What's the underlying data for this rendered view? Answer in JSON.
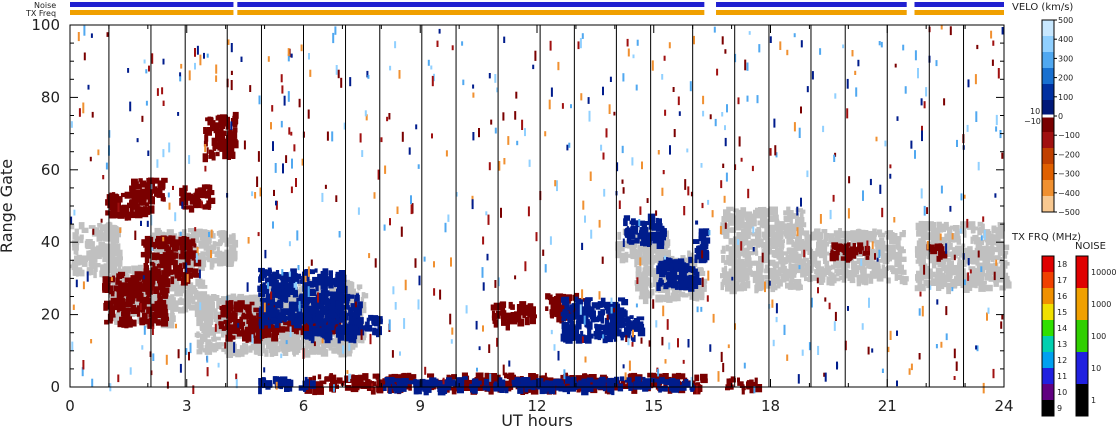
{
  "chart_data": {
    "type": "heatmap",
    "xlabel": "UT hours",
    "ylabel": "Range Gate",
    "xlim": [
      0,
      24
    ],
    "ylim": [
      0,
      100
    ],
    "x_ticks": [
      "0",
      "3",
      "6",
      "9",
      "12",
      "15",
      "18",
      "21",
      "24"
    ],
    "y_ticks": [
      "0",
      "20",
      "40",
      "60",
      "80",
      "100"
    ],
    "status_bars": {
      "noise_label": "Noise",
      "txfreq_label": "TX Freq",
      "noise_color": "#2020d0",
      "txfreq_color": "#f0a000",
      "segments": [
        [
          0,
          4.2
        ],
        [
          4.3,
          16.3
        ],
        [
          16.6,
          21.5
        ],
        [
          21.7,
          24
        ]
      ]
    },
    "scan_boundaries_hours": [
      1,
      2,
      3,
      4,
      5,
      6,
      7,
      8,
      9,
      10,
      11,
      12,
      13,
      14,
      15,
      16,
      17,
      18,
      19,
      20,
      21,
      22,
      23
    ],
    "velocity_colorbar": {
      "title": "VELO (km/s)",
      "ticks_positive": [
        "500",
        "400",
        "300",
        "200",
        "100",
        "0"
      ],
      "ticks_negative": [
        "−100",
        "−200",
        "−300",
        "−400",
        "−500"
      ],
      "side_labels": [
        "10",
        "−10"
      ],
      "colors": [
        "#c8e8ff",
        "#90d0ff",
        "#50a8f0",
        "#1870d0",
        "#0030a0",
        "#001878",
        "#780000",
        "#a01010",
        "#c04000",
        "#e06000",
        "#f09030",
        "#f8c890"
      ]
    },
    "txfreq_colorbar": {
      "title": "TX FRQ (MHz)",
      "ticks": [
        "18",
        "17",
        "16",
        "15",
        "14",
        "13",
        "12",
        "11",
        "10",
        "9"
      ],
      "colors": [
        "#e00000",
        "#f04000",
        "#f09000",
        "#f0e000",
        "#30e000",
        "#00d0b0",
        "#00a0f0",
        "#2020e0",
        "#600080",
        "#000000"
      ]
    },
    "noise_colorbar": {
      "title": "NOISE",
      "ticks": [
        "10000",
        "1000",
        "100",
        "10",
        "1"
      ],
      "colors": [
        "#e00000",
        "#f0a000",
        "#30d000",
        "#2020e0",
        "#000000"
      ]
    },
    "regions": [
      {
        "name": "ground scatter",
        "color": "#c0c0c0",
        "blocks": [
          [
            0,
            1.2,
            32,
            46
          ],
          [
            1.0,
            2.6,
            18,
            34
          ],
          [
            2.0,
            4.2,
            34,
            44
          ],
          [
            1.4,
            3.4,
            22,
            30
          ],
          [
            3.2,
            7.2,
            10,
            26
          ],
          [
            5.0,
            7.5,
            12,
            30
          ],
          [
            14.5,
            16.2,
            25,
            38
          ],
          [
            14.0,
            15.3,
            36,
            44
          ],
          [
            16.7,
            18.8,
            28,
            50
          ],
          [
            18.8,
            21.4,
            30,
            44
          ],
          [
            21.7,
            24,
            28,
            46
          ]
        ]
      },
      {
        "name": "ionospheric scatter negative",
        "color": "#7a0000",
        "blocks": [
          [
            0.8,
            2.4,
            18,
            32
          ],
          [
            1.8,
            3.2,
            30,
            42
          ],
          [
            0.9,
            2.0,
            48,
            54
          ],
          [
            1.5,
            2.4,
            52,
            58
          ],
          [
            2.8,
            3.6,
            50,
            56
          ],
          [
            3.4,
            4.2,
            64,
            76
          ],
          [
            3.8,
            5.2,
            14,
            24
          ],
          [
            4.5,
            6.8,
            16,
            20
          ],
          [
            10.8,
            11.9,
            18,
            24
          ],
          [
            12.2,
            13.1,
            20,
            26
          ],
          [
            6.0,
            16.2,
            0,
            4
          ],
          [
            16.8,
            17.6,
            0,
            3
          ],
          [
            19.5,
            20.5,
            36,
            40
          ],
          [
            22.0,
            22.4,
            36,
            40
          ]
        ]
      },
      {
        "name": "ionospheric scatter positive",
        "color": "#001c8c",
        "blocks": [
          [
            4.8,
            7.0,
            18,
            33
          ],
          [
            6.0,
            7.4,
            14,
            26
          ],
          [
            7.2,
            8.0,
            16,
            20
          ],
          [
            12.6,
            14.2,
            14,
            25
          ],
          [
            13.8,
            14.6,
            14,
            20
          ],
          [
            14.2,
            15.2,
            40,
            48
          ],
          [
            15.0,
            16.1,
            28,
            36
          ],
          [
            8.0,
            16.0,
            0,
            3
          ],
          [
            4.8,
            6.2,
            0,
            3
          ],
          [
            16.0,
            16.3,
            36,
            46
          ]
        ]
      }
    ]
  }
}
